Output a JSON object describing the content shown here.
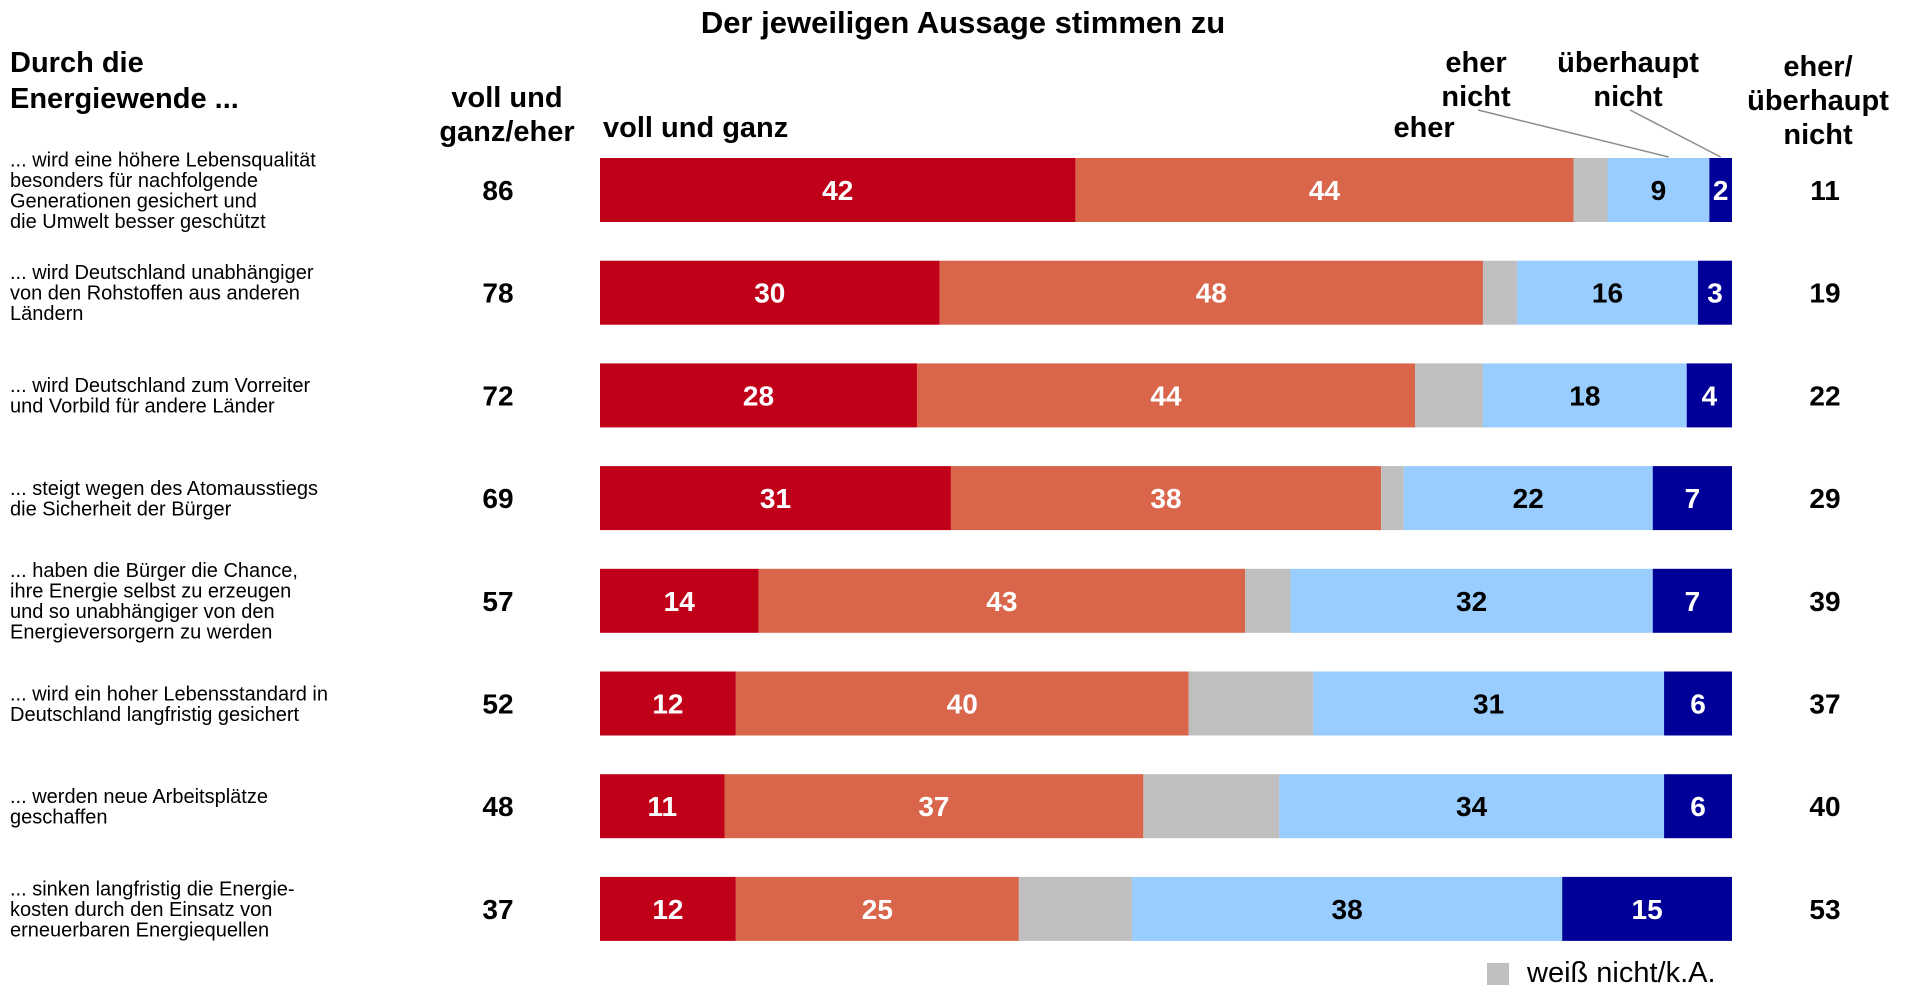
{
  "chart_data": {
    "type": "bar",
    "stacked": true,
    "orientation": "horizontal",
    "title": "Der jeweiligen Aussage stimmen zu",
    "row_header": [
      "Durch die",
      "Energiewende ..."
    ],
    "col_header_agree": [
      "voll und",
      "ganz/eher"
    ],
    "col_header_disagree": [
      "eher/",
      "überhaupt",
      "nicht"
    ],
    "categories": [
      [
        "... wird eine höhere Lebensqualität",
        "besonders für nachfolgende",
        "Generationen gesichert und",
        "die Umwelt besser geschützt"
      ],
      [
        "... wird Deutschland unabhängiger",
        "von den Rohstoffen aus anderen",
        "Ländern"
      ],
      [
        "... wird Deutschland zum Vorreiter",
        "und Vorbild für andere Länder"
      ],
      [
        "... steigt wegen des Atomausstiegs",
        "die Sicherheit der Bürger"
      ],
      [
        "... haben die Bürger die Chance,",
        "ihre Energie selbst zu erzeugen",
        "und so unabhängiger von den",
        "Energieversorgern zu werden"
      ],
      [
        "... wird ein hoher Lebensstandard in",
        "Deutschland langfristig gesichert"
      ],
      [
        "... werden neue Arbeitsplätze",
        "geschaffen"
      ],
      [
        "... sinken langfristig die Energie-",
        "kosten durch den Einsatz von",
        "erneuerbaren Energiequellen"
      ]
    ],
    "series": [
      {
        "name": "voll und ganz",
        "color": "#c00018",
        "label_color": "#ffffff",
        "values": [
          42,
          30,
          28,
          31,
          14,
          12,
          11,
          12
        ]
      },
      {
        "name": "eher",
        "color": "#d9654b",
        "label_color": "#ffffff",
        "values": [
          44,
          48,
          44,
          38,
          43,
          40,
          37,
          25
        ]
      },
      {
        "name": "weiß nicht/k.A.",
        "color": "#bfbfbf",
        "label_color": "#000000",
        "values": [
          3,
          3,
          6,
          2,
          4,
          11,
          12,
          10
        ],
        "labeled": false
      },
      {
        "name": "eher nicht",
        "color": "#99ccff",
        "label_color": "#000000",
        "values": [
          9,
          16,
          18,
          22,
          32,
          31,
          34,
          38
        ]
      },
      {
        "name": "überhaupt nicht",
        "color": "#000099",
        "label_color": "#ffffff",
        "values": [
          2,
          3,
          4,
          7,
          7,
          6,
          6,
          15
        ]
      }
    ],
    "series_headers": [
      {
        "series": "voll und ganz",
        "lines": [
          "voll und ganz"
        ]
      },
      {
        "series": "eher",
        "lines": [
          "eher"
        ]
      },
      {
        "series": "eher nicht",
        "lines": [
          "eher",
          "nicht"
        ]
      },
      {
        "series": "überhaupt nicht",
        "lines": [
          "überhaupt",
          "nicht"
        ]
      }
    ],
    "agree_totals": [
      86,
      78,
      72,
      69,
      57,
      52,
      48,
      37
    ],
    "disagree_totals": [
      11,
      19,
      22,
      29,
      39,
      37,
      40,
      53
    ],
    "legend": {
      "label": "weiß nicht/k.A.",
      "color": "#bfbfbf",
      "position": "bottom-right"
    },
    "xlim": [
      0,
      100
    ]
  }
}
